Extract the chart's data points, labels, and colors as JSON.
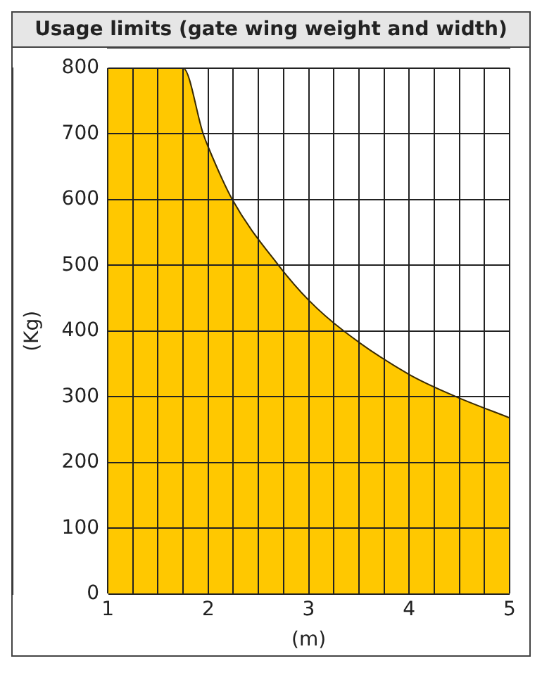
{
  "chart_data": {
    "type": "area",
    "title": "Usage limits (gate wing weight and width)",
    "xlabel": "(m)",
    "ylabel": "(Kg)",
    "x": [
      1,
      1.25,
      1.5,
      1.75,
      1.95,
      2,
      2.24,
      2.7,
      3,
      3.35,
      4,
      4.47,
      5
    ],
    "series": [
      {
        "color": "#ffc800",
        "values": [
          800,
          800,
          800,
          800,
          700,
          680,
          600,
          500,
          447,
          400,
          334,
          300,
          268
        ]
      }
    ],
    "xlim": [
      1,
      5
    ],
    "ylim": [
      0,
      800
    ],
    "xticks": [
      1,
      {
        "value": 1.25,
        "label": null
      },
      {
        "value": 1.5,
        "label": null
      },
      {
        "value": 1.75,
        "label": null
      },
      2,
      {
        "value": 2.25,
        "label": null
      },
      {
        "value": 2.5,
        "label": null
      },
      {
        "value": 2.75,
        "label": null
      },
      3,
      {
        "value": 3.25,
        "label": null
      },
      {
        "value": 3.5,
        "label": null
      },
      {
        "value": 3.75,
        "label": null
      },
      4,
      {
        "value": 4.25,
        "label": null
      },
      {
        "value": 4.5,
        "label": null
      },
      {
        "value": 4.75,
        "label": null
      },
      5
    ],
    "yticks": [
      0,
      100,
      200,
      300,
      400,
      500,
      600,
      700,
      800
    ],
    "grid": true,
    "legend": false,
    "marker": "none"
  }
}
